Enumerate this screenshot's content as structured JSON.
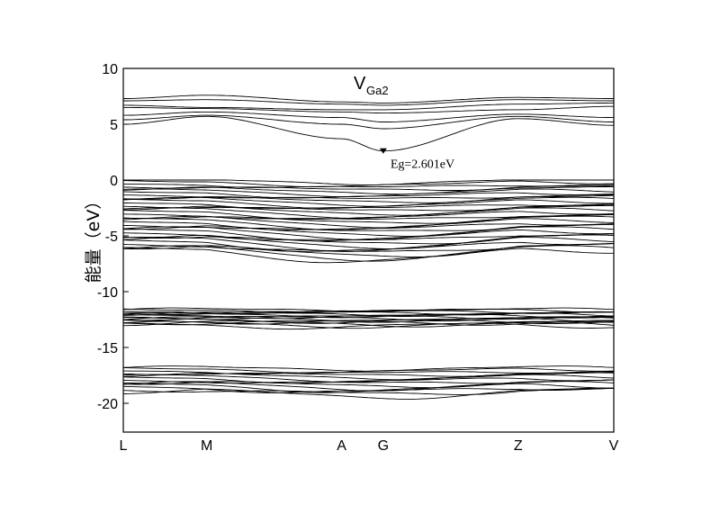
{
  "chart_data": {
    "type": "line",
    "title": "V",
    "title_subscript": "Ga2",
    "ylabel": "能量（eV）",
    "xlabel": "",
    "ylim": [
      -22.5,
      10
    ],
    "y_ticks": [
      10,
      5,
      0,
      -5,
      -10,
      -15,
      -20
    ],
    "y_tick_labels": [
      "10",
      "5",
      "0",
      "-5",
      "-10",
      "-15",
      "-20"
    ],
    "k_points": [
      "L",
      "M",
      "A",
      "G",
      "Z",
      "V"
    ],
    "k_positions": [
      0,
      0.17,
      0.445,
      0.53,
      0.805,
      1.0
    ],
    "grid": false,
    "legend": "none",
    "annotation": {
      "text": "Eg=2.601eV",
      "x": 0.53,
      "y": 2.601,
      "marker": "down-triangle"
    },
    "band_groups": [
      {
        "name": "conduction",
        "bands": [
          [
            7.3,
            7.6,
            7.0,
            6.9,
            7.4,
            7.3
          ],
          [
            7.1,
            7.2,
            6.8,
            6.7,
            7.2,
            7.1
          ],
          [
            6.7,
            6.5,
            6.3,
            6.3,
            6.8,
            6.9
          ],
          [
            6.5,
            6.4,
            6.1,
            6.0,
            6.3,
            6.6
          ],
          [
            5.8,
            6.1,
            5.6,
            5.2,
            5.9,
            5.6
          ],
          [
            5.4,
            5.8,
            5.0,
            4.6,
            5.7,
            5.2
          ],
          [
            5.0,
            5.7,
            3.7,
            2.601,
            5.5,
            4.9
          ]
        ]
      },
      {
        "name": "valence",
        "lines": 34,
        "top": 0,
        "bottom": -6.3,
        "edge_dip": 0.9
      },
      {
        "name": "semicore-1",
        "lines": 16,
        "top": -11.6,
        "bottom": -13.0,
        "edge_dip": 0.1
      },
      {
        "name": "semicore-2",
        "lines": 14,
        "top": -16.8,
        "bottom": -18.9,
        "edge_dip": 0.5
      }
    ]
  }
}
